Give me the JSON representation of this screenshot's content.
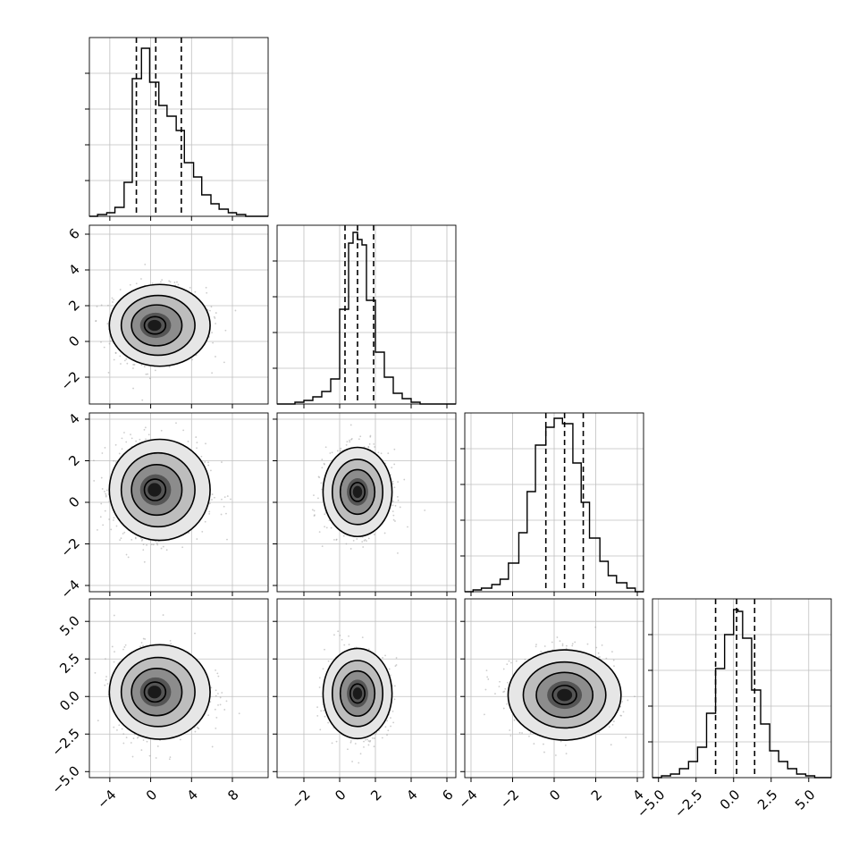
{
  "chart_data": {
    "type": "corner",
    "parameters": 4,
    "grid": true,
    "panels": [
      {
        "row": 0,
        "col": 0,
        "kind": "histogram",
        "xlim": [
          -6,
          11.5
        ],
        "ylim": [
          0,
          1
        ],
        "bins_x": [
          -6,
          -5.2,
          -4.3,
          -3.5,
          -2.6,
          -1.8,
          -0.9,
          -0.1,
          0.8,
          1.6,
          2.5,
          3.3,
          4.2,
          5.0,
          5.9,
          6.7,
          7.6,
          8.4,
          9.3,
          10.1,
          11.0,
          11.5
        ],
        "counts": [
          0.0,
          0.01,
          0.02,
          0.05,
          0.19,
          0.77,
          0.94,
          0.75,
          0.62,
          0.56,
          0.48,
          0.3,
          0.22,
          0.12,
          0.07,
          0.04,
          0.02,
          0.01,
          0.0,
          0.0,
          0.0
        ],
        "quantiles": [
          -1.4,
          0.5,
          3.0
        ]
      },
      {
        "row": 1,
        "col": 1,
        "kind": "histogram",
        "xlim": [
          -3.5,
          6.5
        ],
        "ylim": [
          0,
          1
        ],
        "bins_x": [
          -3.5,
          -3.0,
          -2.5,
          -2.0,
          -1.5,
          -1.0,
          -0.5,
          0.0,
          0.5,
          0.75,
          1.0,
          1.25,
          1.5,
          2.0,
          2.5,
          3.0,
          3.5,
          4.0,
          4.5,
          5.0,
          5.5,
          6.5
        ],
        "counts": [
          0.0,
          0.0,
          0.01,
          0.02,
          0.04,
          0.07,
          0.14,
          0.53,
          0.9,
          0.96,
          0.92,
          0.89,
          0.58,
          0.29,
          0.15,
          0.06,
          0.03,
          0.01,
          0.0,
          0.0,
          0.0
        ],
        "quantiles": [
          0.3,
          1.0,
          1.9
        ]
      },
      {
        "row": 2,
        "col": 2,
        "kind": "histogram",
        "xlim": [
          -4.3,
          4.3
        ],
        "ylim": [
          0,
          1
        ],
        "bins_x": [
          -4.3,
          -3.9,
          -3.5,
          -3.0,
          -2.6,
          -2.2,
          -1.7,
          -1.3,
          -0.9,
          -0.4,
          0.0,
          0.4,
          0.9,
          1.3,
          1.7,
          2.2,
          2.6,
          3.0,
          3.5,
          3.9,
          4.3
        ],
        "counts": [
          0.0,
          0.01,
          0.02,
          0.04,
          0.07,
          0.16,
          0.33,
          0.56,
          0.82,
          0.92,
          0.97,
          0.94,
          0.72,
          0.5,
          0.3,
          0.17,
          0.09,
          0.05,
          0.02,
          0.0
        ],
        "quantiles": [
          -0.4,
          0.5,
          1.4
        ]
      },
      {
        "row": 3,
        "col": 3,
        "kind": "histogram",
        "xlim": [
          -5.4,
          6.5
        ],
        "ylim": [
          0,
          1
        ],
        "bins_x": [
          -5.4,
          -4.8,
          -4.2,
          -3.6,
          -3.0,
          -2.4,
          -1.8,
          -1.2,
          -0.6,
          0.0,
          0.3,
          0.6,
          1.2,
          1.8,
          2.4,
          3.0,
          3.6,
          4.2,
          4.8,
          5.4,
          6.5
        ],
        "counts": [
          0.0,
          0.01,
          0.02,
          0.05,
          0.09,
          0.17,
          0.36,
          0.61,
          0.8,
          0.94,
          0.93,
          0.78,
          0.49,
          0.3,
          0.15,
          0.09,
          0.05,
          0.02,
          0.01,
          0.0
        ],
        "quantiles": [
          -1.2,
          0.2,
          1.4
        ]
      },
      {
        "row": 1,
        "col": 0,
        "kind": "density2d",
        "xlim": [
          -6,
          11.5
        ],
        "ylim": [
          -3.5,
          6.5
        ],
        "center": [
          0.3,
          0.9
        ],
        "spread": [
          3.0,
          1.6
        ],
        "skew_x": 1.3
      },
      {
        "row": 2,
        "col": 0,
        "kind": "density2d",
        "xlim": [
          -6,
          11.5
        ],
        "ylim": [
          -4.3,
          4.3
        ],
        "center": [
          0.3,
          0.6
        ],
        "spread": [
          3.0,
          1.7
        ],
        "skew_x": 1.3
      },
      {
        "row": 3,
        "col": 0,
        "kind": "density2d",
        "xlim": [
          -6,
          11.5
        ],
        "ylim": [
          -5.4,
          6.5
        ],
        "center": [
          0.3,
          0.3
        ],
        "spread": [
          3.0,
          2.2
        ],
        "skew_x": 1.3
      },
      {
        "row": 2,
        "col": 1,
        "kind": "density2d",
        "xlim": [
          -3.5,
          6.5
        ],
        "ylim": [
          -4.3,
          4.3
        ],
        "center": [
          1.0,
          0.5
        ],
        "spread": [
          1.35,
          1.5
        ],
        "skew_x": 1.0
      },
      {
        "row": 3,
        "col": 1,
        "kind": "density2d",
        "xlim": [
          -3.5,
          6.5
        ],
        "ylim": [
          -5.4,
          6.5
        ],
        "center": [
          1.0,
          0.2
        ],
        "spread": [
          1.35,
          2.1
        ],
        "skew_x": 1.0
      },
      {
        "row": 3,
        "col": 2,
        "kind": "density2d",
        "xlim": [
          -4.3,
          4.3
        ],
        "ylim": [
          -5.4,
          6.5
        ],
        "center": [
          0.5,
          0.1
        ],
        "spread": [
          1.9,
          2.1
        ],
        "skew_x": 1.0
      }
    ],
    "axes": {
      "x_ticks": [
        {
          "values": [
            -4,
            0,
            4,
            8
          ],
          "labels": [
            "−4",
            "0",
            "4",
            "8"
          ]
        },
        {
          "values": [
            -2,
            0,
            2,
            4,
            6
          ],
          "labels": [
            "−2",
            "0",
            "2",
            "4",
            "6"
          ]
        },
        {
          "values": [
            -4,
            -2,
            0,
            2,
            4
          ],
          "labels": [
            "−4",
            "−2",
            "0",
            "2",
            "4"
          ]
        },
        {
          "values": [
            -5,
            -2.5,
            0,
            2.5,
            5
          ],
          "labels": [
            "−5.0",
            "−2.5",
            "0.0",
            "2.5",
            "5.0"
          ]
        }
      ],
      "y_ticks": [
        null,
        {
          "values": [
            -2,
            0,
            2,
            4,
            6
          ],
          "labels": [
            "−2",
            "0",
            "2",
            "4",
            "6"
          ]
        },
        {
          "values": [
            -4,
            -2,
            0,
            2,
            4
          ],
          "labels": [
            "−4",
            "−2",
            "0",
            "2",
            "4"
          ]
        },
        {
          "values": [
            -5,
            -2.5,
            0,
            2.5,
            5
          ],
          "labels": [
            "−5.0",
            "−2.5",
            "0.0",
            "2.5",
            "5.0"
          ]
        }
      ]
    }
  }
}
